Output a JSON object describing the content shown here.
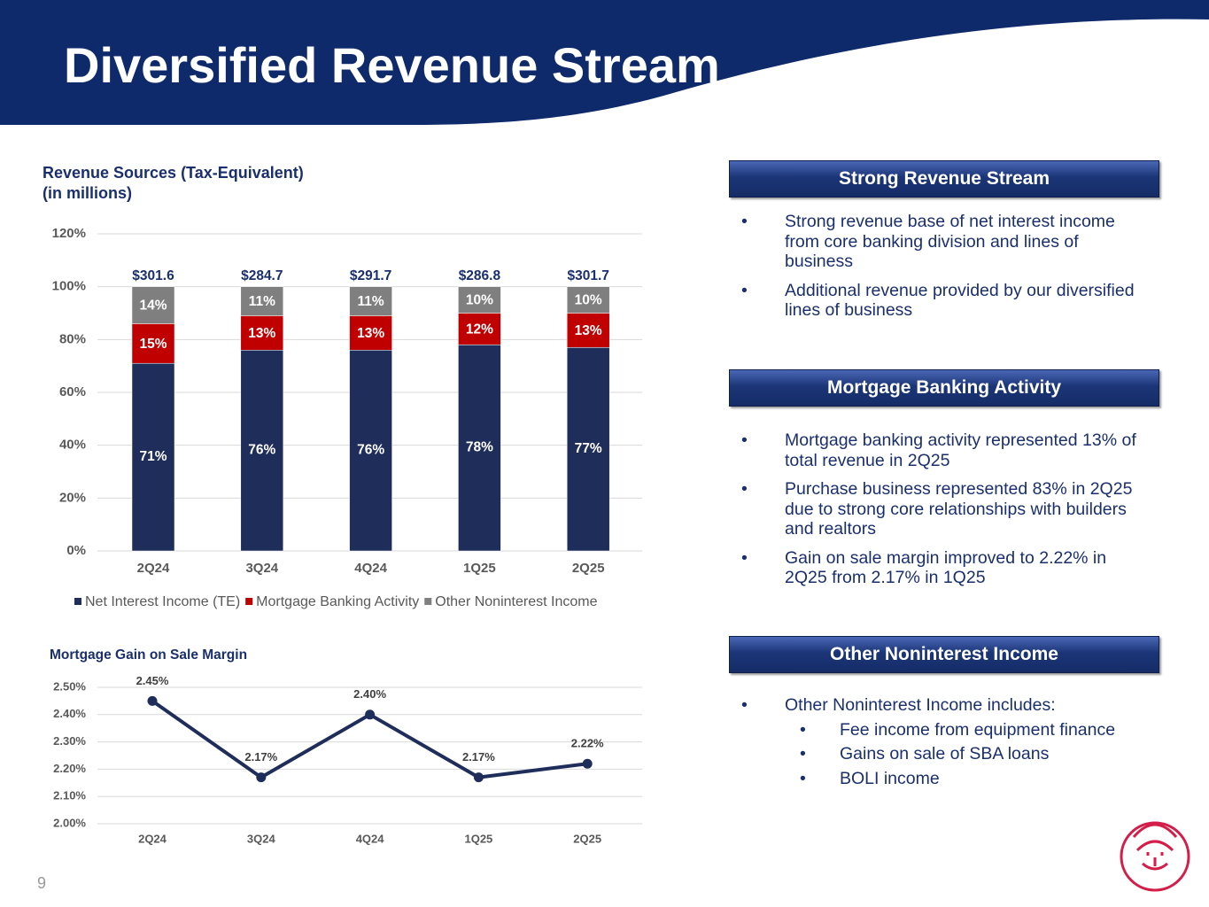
{
  "title": "Diversified Revenue Stream",
  "page_number": "9",
  "chart_data": [
    {
      "type": "stacked_bar",
      "title": "Revenue Sources (Tax-Equivalent)",
      "subtitle": "(in millions)",
      "categories": [
        "2Q24",
        "3Q24",
        "4Q24",
        "1Q25",
        "2Q25"
      ],
      "series": [
        {
          "name": "Net Interest Income (TE)",
          "color": "#1f2d5a",
          "values": [
            71,
            76,
            76,
            78,
            77
          ],
          "value_labels": [
            "71%",
            "76%",
            "76%",
            "78%",
            "77%"
          ]
        },
        {
          "name": "Mortgage Banking Activity",
          "color": "#c00000",
          "values": [
            15,
            13,
            13,
            12,
            13
          ],
          "value_labels": [
            "15%",
            "13%",
            "13%",
            "12%",
            "13%"
          ]
        },
        {
          "name": "Other Noninterest Income",
          "color": "#7f7f7f",
          "values": [
            14,
            11,
            11,
            10,
            10
          ],
          "value_labels": [
            "14%",
            "11%",
            "11%",
            "10%",
            "10%"
          ]
        }
      ],
      "annotations": [
        "$301.6",
        "$284.7",
        "$291.7",
        "$286.8",
        "$301.7"
      ],
      "ylim": [
        0,
        120
      ],
      "yticks": [
        {
          "value": 0,
          "label": "0%"
        },
        {
          "value": 20,
          "label": "20%"
        },
        {
          "value": 40,
          "label": "40%"
        },
        {
          "value": 60,
          "label": "60%"
        },
        {
          "value": 80,
          "label": "80%"
        },
        {
          "value": 100,
          "label": "100%"
        },
        {
          "value": 120,
          "label": "120%"
        }
      ],
      "grid": true,
      "legend": "bottom"
    },
    {
      "type": "line",
      "title": "Mortgage Gain on Sale Margin",
      "categories": [
        "2Q24",
        "3Q24",
        "4Q24",
        "1Q25",
        "2Q25"
      ],
      "color": "#1f2d5a",
      "values": [
        2.45,
        2.17,
        2.4,
        2.17,
        2.22
      ],
      "value_labels": [
        "2.45%",
        "2.17%",
        "2.40%",
        "2.17%",
        "2.22%"
      ],
      "ylim": [
        2.0,
        2.5
      ],
      "yticks": [
        {
          "value": 2.0,
          "label": "2.00%"
        },
        {
          "value": 2.1,
          "label": "2.10%"
        },
        {
          "value": 2.2,
          "label": "2.20%"
        },
        {
          "value": 2.3,
          "label": "2.30%"
        },
        {
          "value": 2.4,
          "label": "2.40%"
        },
        {
          "value": 2.5,
          "label": "2.50%"
        }
      ],
      "grid": true
    }
  ],
  "sections": [
    {
      "heading": "Strong Revenue Stream",
      "bullets": [
        {
          "text": "Strong revenue base of net interest income from core banking division and lines of business"
        },
        {
          "text": "Additional revenue provided by our diversified lines of business"
        }
      ]
    },
    {
      "heading": "Mortgage Banking Activity",
      "bullets": [
        {
          "text": "Mortgage banking activity represented 13% of total revenue in 2Q25"
        },
        {
          "text": "Purchase business represented 83% in 2Q25 due to strong core relationships with builders and realtors"
        },
        {
          "text": "Gain on sale margin improved to 2.22% in 2Q25 from 2.17% in 1Q25"
        }
      ]
    },
    {
      "heading": "Other Noninterest Income",
      "bullets": [
        {
          "text": "Other Noninterest Income includes:",
          "sub": [
            "Fee income from equipment finance",
            "Gains on sale of SBA loans",
            "BOLI income"
          ]
        }
      ]
    }
  ]
}
